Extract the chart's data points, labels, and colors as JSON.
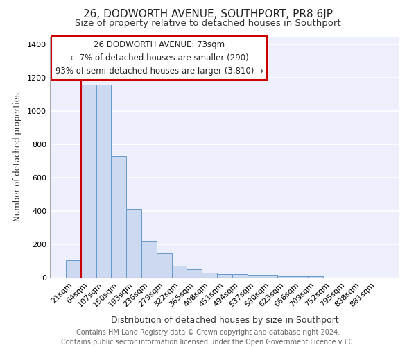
{
  "title": "26, DODWORTH AVENUE, SOUTHPORT, PR8 6JP",
  "subtitle": "Size of property relative to detached houses in Southport",
  "xlabel": "Distribution of detached houses by size in Southport",
  "ylabel": "Number of detached properties",
  "categories": [
    "21sqm",
    "64sqm",
    "107sqm",
    "150sqm",
    "193sqm",
    "236sqm",
    "279sqm",
    "322sqm",
    "365sqm",
    "408sqm",
    "451sqm",
    "494sqm",
    "537sqm",
    "580sqm",
    "623sqm",
    "666sqm",
    "709sqm",
    "752sqm",
    "795sqm",
    "838sqm",
    "881sqm"
  ],
  "values": [
    105,
    1160,
    1160,
    730,
    415,
    220,
    145,
    70,
    50,
    30,
    20,
    20,
    15,
    15,
    10,
    10,
    10,
    0,
    0,
    0,
    0
  ],
  "bar_color": "#ccd9f0",
  "bar_edge_color": "#6699cc",
  "red_line_x": 0.5,
  "annotation_text": "26 DODWORTH AVENUE: 73sqm\n← 7% of detached houses are smaller (290)\n93% of semi-detached houses are larger (3,810) →",
  "annotation_box_color": "#ffffff",
  "annotation_box_edge": "#cc0000",
  "ylim": [
    0,
    1450
  ],
  "yticks": [
    0,
    200,
    400,
    600,
    800,
    1000,
    1200,
    1400
  ],
  "background_color": "#edf0fc",
  "grid_color": "#ffffff",
  "footer_text": "Contains HM Land Registry data © Crown copyright and database right 2024.\nContains public sector information licensed under the Open Government Licence v3.0.",
  "title_fontsize": 11,
  "subtitle_fontsize": 9.5,
  "xlabel_fontsize": 9,
  "ylabel_fontsize": 8.5,
  "tick_fontsize": 8,
  "annotation_fontsize": 8.5,
  "footer_fontsize": 7
}
